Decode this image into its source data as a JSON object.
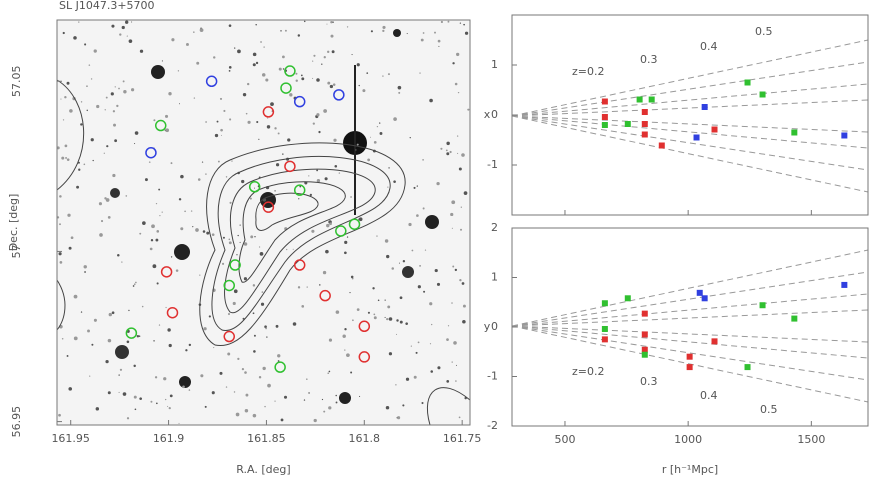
{
  "chart_data": [
    {
      "type": "sky",
      "title": "SL J1047.3+5700",
      "xlabel": "R.A. [deg]",
      "ylabel": "Dec. [deg]",
      "xlim": [
        161.957,
        161.746
      ],
      "xticks": [
        161.95,
        161.9,
        161.85,
        161.8,
        161.75
      ],
      "ylim": [
        56.949,
        57.068
      ],
      "yticks": [
        56.95,
        57,
        57.05
      ],
      "series": [
        {
          "color": "#e03030",
          "x": [
            161.849,
            161.838,
            161.849,
            161.833,
            161.901,
            161.898,
            161.869,
            161.82,
            161.8,
            161.8
          ],
          "values": [
            57.041,
            57.025,
            57.013,
            56.996,
            56.994,
            56.982,
            56.975,
            56.987,
            56.978,
            56.969
          ]
        },
        {
          "color": "#30c030",
          "x": [
            161.838,
            161.84,
            161.904,
            161.856,
            161.833,
            161.805,
            161.866,
            161.869,
            161.919,
            161.843,
            161.812
          ],
          "values": [
            57.053,
            57.048,
            57.037,
            57.019,
            57.018,
            57.008,
            56.996,
            56.99,
            56.976,
            56.966,
            57.006
          ]
        },
        {
          "color": "#3040e0",
          "x": [
            161.878,
            161.909,
            161.833,
            161.813
          ],
          "values": [
            57.05,
            57.029,
            57.044,
            57.046
          ]
        }
      ]
    },
    {
      "type": "scatter",
      "ylabel": "x",
      "xlim": [
        285,
        1730
      ],
      "xticks": [
        500,
        1000,
        1500
      ],
      "ylim": [
        -2,
        2
      ],
      "yticks": [
        -1,
        0,
        1
      ],
      "annotations": [
        "z=0.2",
        "0.3",
        "0.4",
        "0.5"
      ],
      "series": [
        {
          "color": "#e03030",
          "x": [
            662,
            662,
            824,
            824,
            824,
            893,
            1107
          ],
          "values": [
            0.27,
            -0.04,
            0.06,
            -0.18,
            -0.39,
            -0.61,
            -0.29
          ]
        },
        {
          "color": "#30c030",
          "x": [
            662,
            755,
            803,
            852,
            1241,
            1302,
            1431
          ],
          "values": [
            -0.2,
            -0.18,
            0.31,
            0.31,
            0.65,
            0.41,
            -0.35
          ]
        },
        {
          "color": "#3040e0",
          "x": [
            1067,
            1034,
            1634
          ],
          "values": [
            0.16,
            -0.45,
            -0.41
          ]
        }
      ]
    },
    {
      "type": "scatter",
      "ylabel": "y",
      "xlabel": "r [h⁻¹Mpc]",
      "xlim": [
        285,
        1730
      ],
      "xticks": [
        500,
        1000,
        1500
      ],
      "ylim": [
        -2,
        2
      ],
      "yticks": [
        -2,
        -1,
        0,
        1,
        2
      ],
      "annotations": [
        "z=0.2",
        "0.3",
        "0.4",
        "0.5"
      ],
      "series": [
        {
          "color": "#e03030",
          "x": [
            662,
            824,
            824,
            824,
            1006,
            1006,
            1107
          ],
          "values": [
            -0.25,
            0.27,
            -0.15,
            -0.46,
            -0.6,
            -0.81,
            -0.29
          ]
        },
        {
          "color": "#30c030",
          "x": [
            662,
            662,
            755,
            824,
            1241,
            1302,
            1431
          ],
          "values": [
            0.48,
            -0.04,
            0.58,
            -0.56,
            -0.81,
            0.44,
            0.17
          ]
        },
        {
          "color": "#3040e0",
          "x": [
            1047,
            1067,
            1634
          ],
          "values": [
            0.69,
            0.58,
            0.85
          ]
        }
      ]
    }
  ]
}
